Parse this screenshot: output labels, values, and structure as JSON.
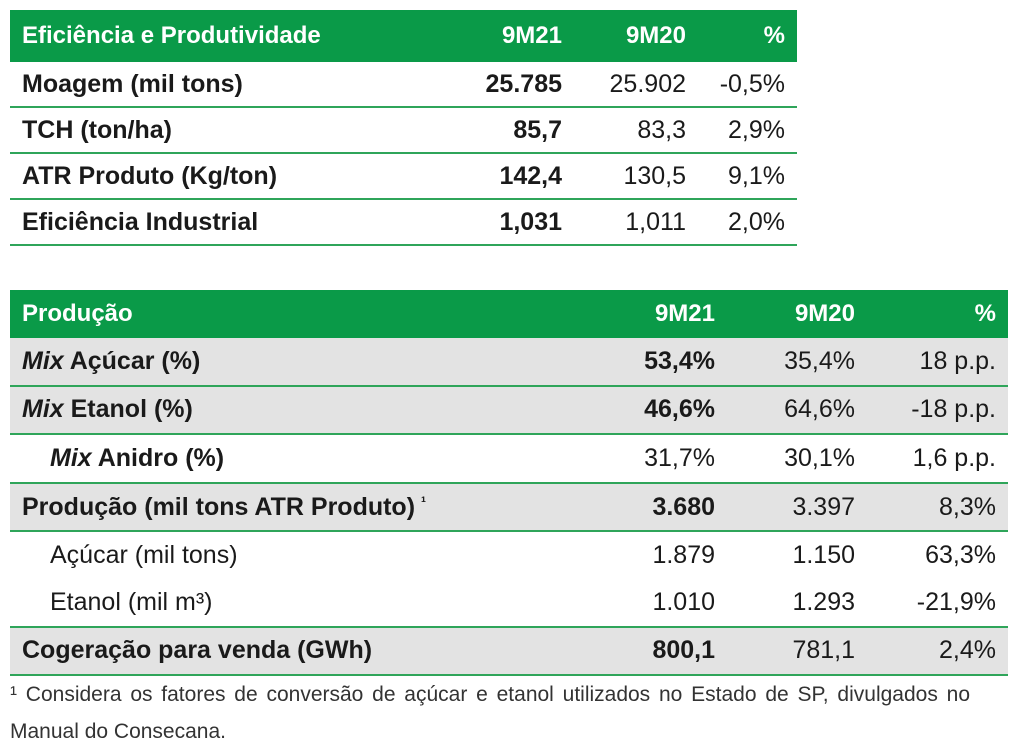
{
  "table1": {
    "header": [
      "Eficiência e Produtividade",
      "9M21",
      "9M20",
      "%"
    ],
    "rows": [
      {
        "label": "Moagem (mil tons)",
        "v1": "25.785",
        "v2": "25.902",
        "v3": "-0,5%"
      },
      {
        "label": "TCH (ton/ha)",
        "v1": "85,7",
        "v2": "83,3",
        "v3": "2,9%"
      },
      {
        "label": "ATR Produto (Kg/ton)",
        "v1": "142,4",
        "v2": "130,5",
        "v3": "9,1%"
      },
      {
        "label": "Eficiência Industrial",
        "v1": "1,031",
        "v2": "1,011",
        "v3": "2,0%"
      }
    ]
  },
  "table2": {
    "header": [
      "Produção",
      "9M21",
      "9M20",
      "%"
    ],
    "rows": [
      {
        "label_italic": "Mix",
        "label": " Açúcar (%)",
        "v1": "53,4%",
        "v2": "35,4%",
        "v3": "18 p.p."
      },
      {
        "label_italic": "Mix",
        "label": " Etanol (%)",
        "v1": "46,6%",
        "v2": "64,6%",
        "v3": "-18 p.p."
      },
      {
        "label_italic": "Mix",
        "label": " Anidro (%)",
        "v1": "31,7%",
        "v2": "30,1%",
        "v3": "1,6 p.p."
      },
      {
        "label": "Produção (mil tons ATR Produto)",
        "sup": "¹",
        "v1": "3.680",
        "v2": "3.397",
        "v3": "8,3%"
      },
      {
        "label": "Açúcar (mil tons)",
        "v1": "1.879",
        "v2": "1.150",
        "v3": "63,3%"
      },
      {
        "label": "Etanol (mil m³)",
        "v1": "1.010",
        "v2": "1.293",
        "v3": "-21,9%"
      },
      {
        "label": "Cogeração para venda (GWh)",
        "v1": "800,1",
        "v2": "781,1",
        "v3": "2,4%"
      }
    ]
  },
  "footnote": "¹ Considera os fatores de conversão de açúcar e etanol utilizados no Estado de SP, divulgados no Manual do Consecana."
}
